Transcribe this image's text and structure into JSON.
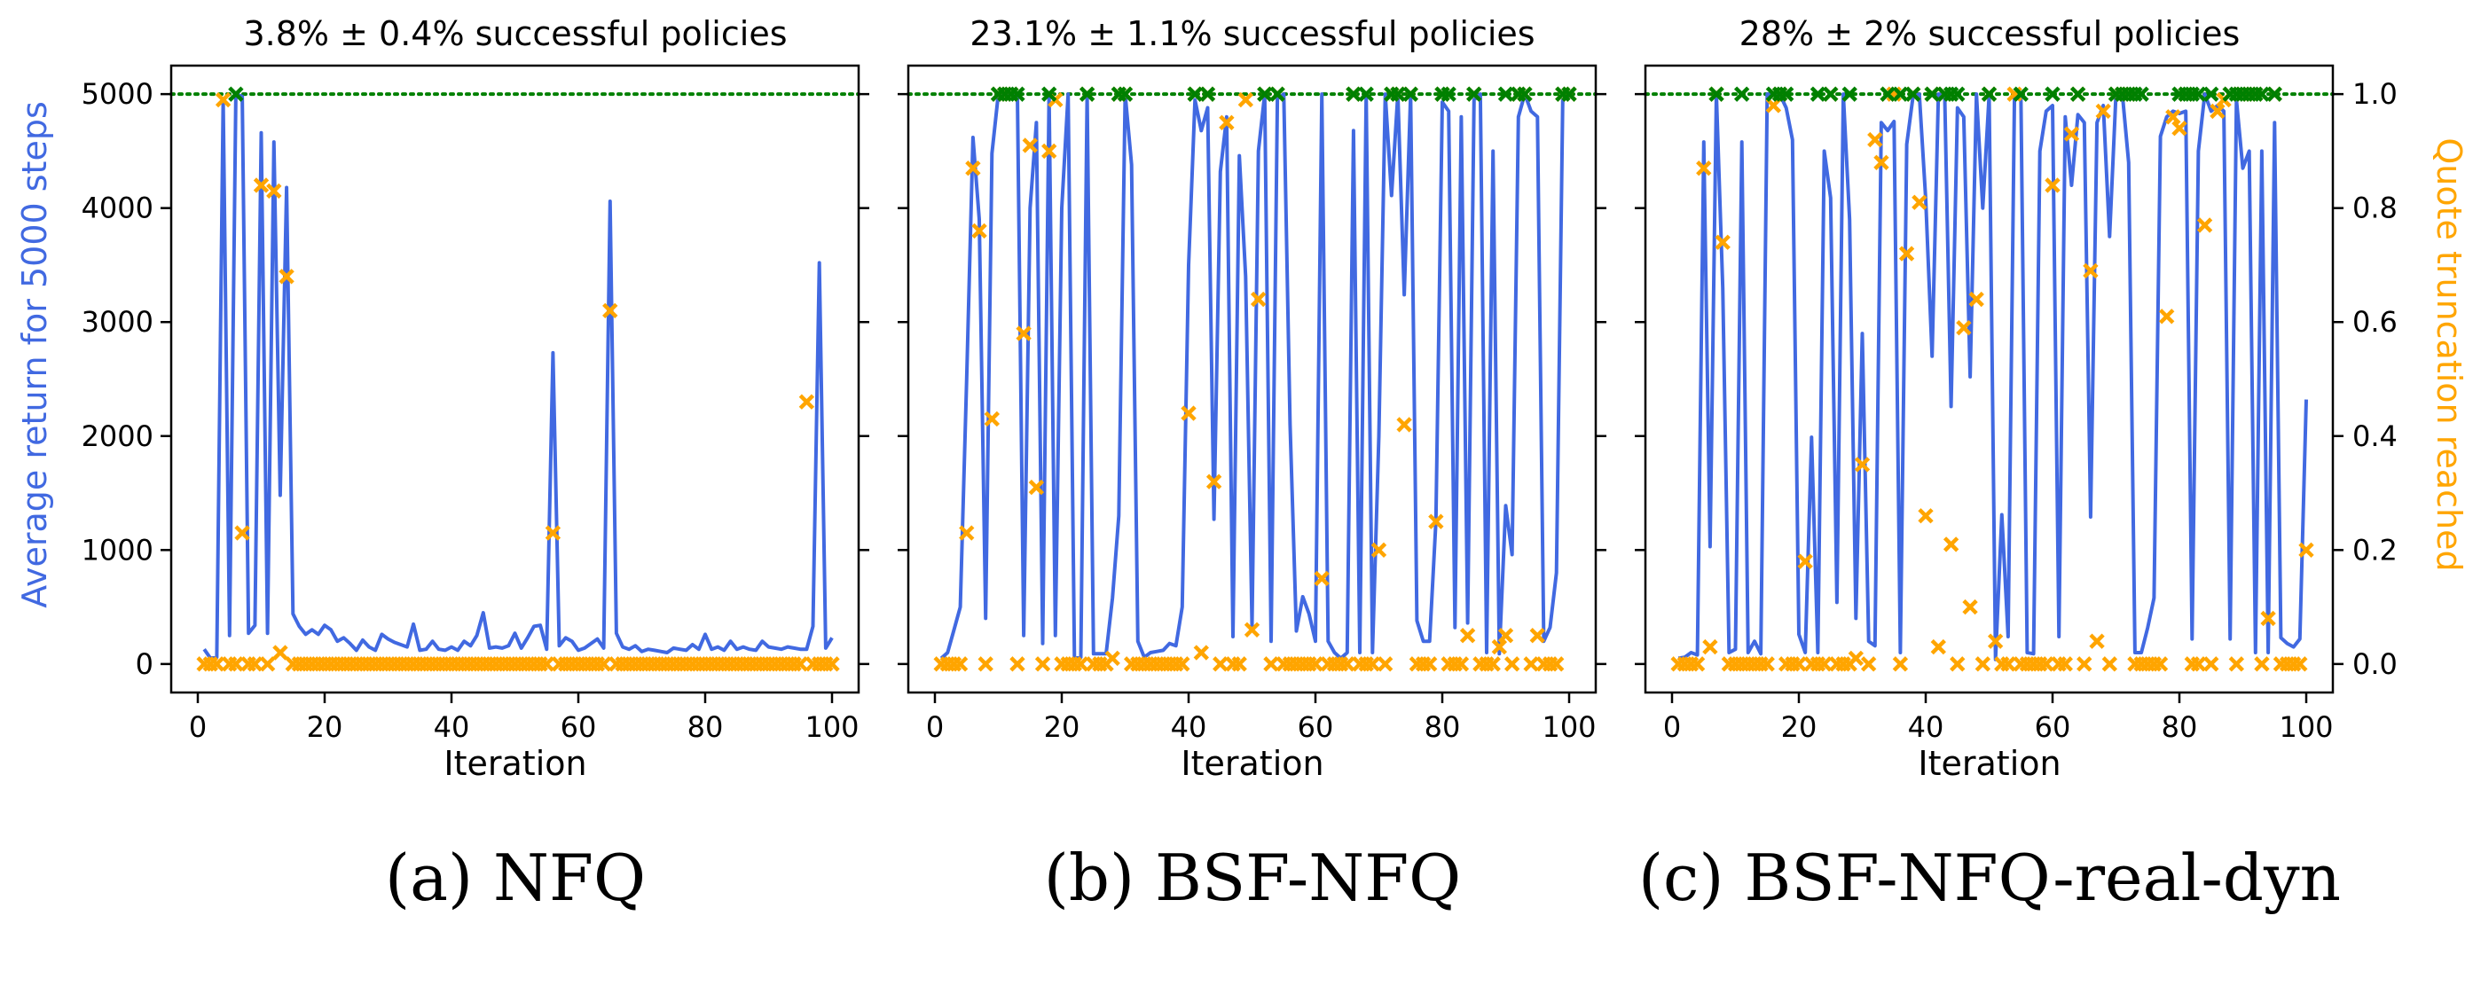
{
  "colors": {
    "return_line": "#4169e1",
    "truncation_marker": "#ffa500",
    "success_marker": "#008000",
    "max_return_line": "#008000",
    "axes": "#000000",
    "left_label": "#4169e1",
    "right_label": "#ffa500"
  },
  "shared": {
    "ylabel_left": "Average return for 5000 steps",
    "ylabel_right": "Quote truncation reached",
    "left_ticks": [
      0,
      1000,
      2000,
      3000,
      4000,
      5000
    ],
    "right_ticks": [
      "0.0",
      "0.2",
      "0.4",
      "0.6",
      "0.8",
      "1.0"
    ],
    "x_ticks": [
      0,
      20,
      40,
      60,
      80,
      100
    ]
  },
  "chart_data": [
    {
      "type": "line",
      "title": "3.8% ± 0.4% successful policies",
      "caption": "(a) NFQ",
      "xlabel": "Iteration",
      "ylabel": "Average return for 5000 steps",
      "xlim": [
        0,
        100
      ],
      "ylim": [
        -250,
        5250
      ],
      "reference_line": 5000,
      "x": [
        1,
        2,
        3,
        4,
        5,
        6,
        7,
        8,
        9,
        10,
        11,
        12,
        13,
        14,
        15,
        16,
        17,
        18,
        19,
        20,
        21,
        22,
        23,
        24,
        25,
        26,
        27,
        28,
        29,
        30,
        31,
        32,
        33,
        34,
        35,
        36,
        37,
        38,
        39,
        40,
        41,
        42,
        43,
        44,
        45,
        46,
        47,
        48,
        49,
        50,
        51,
        52,
        53,
        54,
        55,
        56,
        57,
        58,
        59,
        60,
        61,
        62,
        63,
        64,
        65,
        66,
        67,
        68,
        69,
        70,
        71,
        72,
        73,
        74,
        75,
        76,
        77,
        78,
        79,
        80,
        81,
        82,
        83,
        84,
        85,
        86,
        87,
        88,
        89,
        90,
        91,
        92,
        93,
        94,
        95,
        96,
        97,
        98,
        99,
        100
      ],
      "return_values": [
        130,
        50,
        60,
        4950,
        250,
        5000,
        4980,
        270,
        340,
        4660,
        270,
        4580,
        1480,
        4180,
        440,
        330,
        260,
        300,
        260,
        340,
        300,
        200,
        230,
        180,
        120,
        210,
        150,
        120,
        260,
        220,
        190,
        170,
        150,
        350,
        120,
        130,
        200,
        130,
        120,
        150,
        120,
        200,
        160,
        250,
        450,
        140,
        150,
        140,
        160,
        270,
        140,
        230,
        330,
        340,
        130,
        2730,
        160,
        230,
        200,
        120,
        140,
        180,
        220,
        140,
        4060,
        270,
        150,
        130,
        160,
        110,
        130,
        120,
        110,
        100,
        140,
        130,
        120,
        170,
        130,
        260,
        130,
        150,
        120,
        200,
        130,
        150,
        130,
        120,
        200,
        150,
        140,
        130,
        150,
        140,
        130,
        130,
        330,
        3520,
        140,
        230,
        180,
        250
      ],
      "truncation_values": [
        0,
        0,
        0,
        0.99,
        0,
        0,
        0.23,
        0,
        0,
        0.84,
        0,
        0.83,
        0.02,
        0.68,
        0,
        0,
        0,
        0,
        0,
        0,
        0,
        0,
        0,
        0,
        0,
        0,
        0,
        0,
        0,
        0,
        0,
        0,
        0,
        0,
        0,
        0,
        0,
        0,
        0,
        0,
        0,
        0,
        0,
        0,
        0,
        0,
        0,
        0,
        0,
        0,
        0,
        0,
        0,
        0,
        0,
        0.23,
        0,
        0,
        0,
        0,
        0,
        0,
        0,
        0,
        0.62,
        0,
        0,
        0,
        0,
        0,
        0,
        0,
        0,
        0,
        0,
        0,
        0,
        0,
        0,
        0,
        0,
        0,
        0,
        0,
        0,
        0,
        0,
        0,
        0,
        0,
        0,
        0,
        0,
        0,
        0,
        0.46,
        0,
        0,
        0,
        0
      ],
      "success_x": [
        6
      ]
    },
    {
      "type": "line",
      "title": "23.1% ± 1.1% successful policies",
      "caption": "(b) BSF-NFQ",
      "xlabel": "Iteration",
      "ylabel": "Average return for 5000 steps",
      "xlim": [
        0,
        100
      ],
      "ylim": [
        -250,
        5250
      ],
      "reference_line": 5000,
      "x": [
        1,
        2,
        3,
        4,
        5,
        6,
        7,
        8,
        9,
        10,
        11,
        12,
        13,
        14,
        15,
        16,
        17,
        18,
        19,
        20,
        21,
        22,
        23,
        24,
        25,
        26,
        27,
        28,
        29,
        30,
        31,
        32,
        33,
        34,
        35,
        36,
        37,
        38,
        39,
        40,
        41,
        42,
        43,
        44,
        45,
        46,
        47,
        48,
        49,
        50,
        51,
        52,
        53,
        54,
        55,
        56,
        57,
        58,
        59,
        60,
        61,
        62,
        63,
        64,
        65,
        66,
        67,
        68,
        69,
        70,
        71,
        72,
        73,
        74,
        75,
        76,
        77,
        78,
        79,
        80,
        81,
        82,
        83,
        84,
        85,
        86,
        87,
        88,
        89,
        90,
        91,
        92,
        93,
        94,
        95,
        96,
        97,
        98,
        99,
        100
      ],
      "return_values": [
        50,
        100,
        300,
        500,
        2500,
        4620,
        3900,
        400,
        4480,
        5000,
        5000,
        5000,
        5000,
        250,
        4000,
        4750,
        180,
        5000,
        250,
        4000,
        5000,
        50,
        60,
        5000,
        90,
        90,
        90,
        580,
        1300,
        5000,
        4380,
        200,
        60,
        100,
        110,
        120,
        180,
        160,
        500,
        3500,
        4950,
        4680,
        4880,
        1270,
        4320,
        4800,
        240,
        4460,
        3400,
        330,
        4500,
        5000,
        200,
        4960,
        5000,
        2100,
        290,
        590,
        440,
        200,
        5000,
        200,
        100,
        50,
        100,
        4680,
        100,
        5000,
        100,
        2000,
        5000,
        4110,
        5000,
        3240,
        5000,
        380,
        200,
        200,
        1250,
        4930,
        4850,
        320,
        4800,
        360,
        4950,
        5000,
        100,
        4500,
        90,
        1390,
        960,
        4800,
        5000,
        4850,
        4800,
        200,
        320,
        800,
        4950,
        4980
      ],
      "truncation_values": [
        0,
        0,
        0,
        0,
        0.23,
        0.87,
        0.76,
        0,
        0.43,
        1,
        1,
        1,
        0,
        0.58,
        0.91,
        0.31,
        0,
        0.9,
        0.99,
        0,
        0,
        0,
        0,
        1,
        0,
        0,
        0,
        0.01,
        1,
        1,
        0,
        0,
        0,
        0,
        0,
        0,
        0,
        0,
        0,
        0.44,
        1,
        0.02,
        1,
        0.32,
        0,
        0.95,
        0,
        0,
        0.99,
        0.06,
        0.64,
        1,
        0,
        1,
        0,
        0,
        0,
        0,
        0,
        0,
        0.15,
        0,
        0,
        0,
        0,
        1,
        0,
        0,
        0,
        0.2,
        0,
        1,
        1,
        0.42,
        1,
        0,
        0,
        0,
        0.25,
        1,
        0,
        0,
        0,
        0.05,
        1,
        0,
        0,
        0,
        0.03,
        0.05,
        0,
        1,
        1,
        0,
        0.05,
        0,
        0,
        0,
        1,
        1
      ],
      "success_x": [
        10,
        11,
        12,
        13,
        18,
        24,
        29,
        30,
        41,
        43,
        52,
        54,
        66,
        68,
        72,
        73,
        75,
        80,
        81,
        85,
        90,
        92,
        93,
        99,
        100
      ]
    },
    {
      "type": "line",
      "title": "28% ± 2% successful policies",
      "caption": "(c) BSF-NFQ-real-dyn",
      "xlabel": "Iteration",
      "ylabel": "Quote truncation reached",
      "xlim": [
        0,
        100
      ],
      "ylim": [
        -250,
        5250
      ],
      "reference_line": 5000,
      "x": [
        1,
        2,
        3,
        4,
        5,
        6,
        7,
        8,
        9,
        10,
        11,
        12,
        13,
        14,
        15,
        16,
        17,
        18,
        19,
        20,
        21,
        22,
        23,
        24,
        25,
        26,
        27,
        28,
        29,
        30,
        31,
        32,
        33,
        34,
        35,
        36,
        37,
        38,
        39,
        40,
        41,
        42,
        43,
        44,
        45,
        46,
        47,
        48,
        49,
        50,
        51,
        52,
        53,
        54,
        55,
        56,
        57,
        58,
        59,
        60,
        61,
        62,
        63,
        64,
        65,
        66,
        67,
        68,
        69,
        70,
        71,
        72,
        73,
        74,
        75,
        76,
        77,
        78,
        79,
        80,
        81,
        82,
        83,
        84,
        85,
        86,
        87,
        88,
        89,
        90,
        91,
        92,
        93,
        94,
        95,
        96,
        97,
        98,
        99,
        100
      ],
      "return_values": [
        50,
        60,
        100,
        80,
        4580,
        1030,
        5000,
        3300,
        100,
        130,
        4580,
        100,
        200,
        90,
        5000,
        5000,
        5000,
        4880,
        4600,
        260,
        100,
        1990,
        100,
        4500,
        4090,
        540,
        5000,
        3900,
        400,
        2900,
        200,
        160,
        4750,
        4680,
        4760,
        100,
        4560,
        4980,
        5000,
        4080,
        2700,
        5000,
        5000,
        2260,
        4880,
        4800,
        2520,
        5000,
        4000,
        4990,
        40,
        1310,
        240,
        5000,
        5000,
        100,
        90,
        4500,
        4850,
        4900,
        240,
        4800,
        4200,
        4820,
        4750,
        1290,
        4750,
        4900,
        3750,
        5000,
        5000,
        4400,
        100,
        100,
        320,
        580,
        4630,
        4800,
        4850,
        4830,
        4850,
        220,
        4500,
        5000,
        4850,
        4900,
        4850,
        220,
        4950,
        4350,
        4500,
        100,
        4500,
        100,
        4750,
        230,
        180,
        150,
        220,
        2320
      ],
      "truncation_values": [
        0,
        0,
        0,
        0,
        0.87,
        0.03,
        1,
        0.74,
        0,
        0,
        0,
        0,
        0,
        0,
        0,
        0.98,
        1,
        0,
        0,
        0,
        0.18,
        0,
        0,
        0,
        1,
        0,
        0,
        0,
        0.01,
        0.35,
        0,
        0.92,
        0.88,
        1,
        1,
        0,
        0.72,
        1,
        0.81,
        0.26,
        1,
        0.03,
        1,
        0.21,
        0,
        0.59,
        0.1,
        0.64,
        0,
        1,
        0.04,
        0,
        0,
        1,
        0,
        0,
        0,
        0,
        0,
        0.84,
        0,
        0,
        0.93,
        1,
        0,
        0.69,
        0.04,
        0.97,
        0,
        1,
        1,
        1,
        0,
        0,
        0,
        0,
        0,
        0.61,
        0.96,
        0.94,
        1,
        0,
        0,
        0.77,
        0,
        0.97,
        0.99,
        1,
        0,
        1,
        1,
        1,
        0,
        0.08,
        1,
        0,
        0,
        0,
        0,
        0.2
      ],
      "success_x": [
        7,
        11,
        16,
        17,
        18,
        23,
        25,
        28,
        34,
        36,
        38,
        41,
        43,
        44,
        45,
        50,
        55,
        60,
        64,
        70,
        71,
        72,
        73,
        74,
        80,
        81,
        82,
        83,
        85,
        88,
        89,
        90,
        91,
        92,
        93,
        95
      ]
    }
  ]
}
